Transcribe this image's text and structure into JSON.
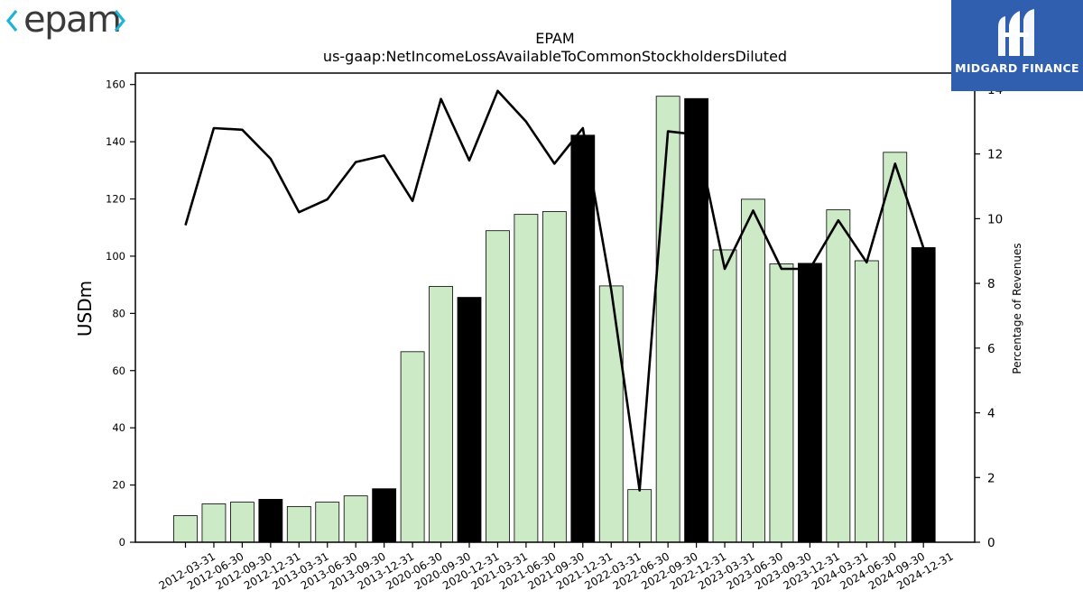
{
  "logos": {
    "left_text": "epam",
    "right_text": "MIDGARD FINANCE"
  },
  "colors": {
    "bar_light": "#cdeac6",
    "bar_dark": "#000000",
    "line": "#000000",
    "brand_blue": "#2f5fae",
    "epam_cyan": "#1fb3d5"
  },
  "chart_data": {
    "type": "bar",
    "title": "EPAM",
    "subtitle": "us-gaap:NetIncomeLossAvailableToCommonStockholdersDiluted",
    "ylabel": "USDm",
    "y2label": "Percentage of Revenues",
    "ylim": [
      0,
      164
    ],
    "y2lim": [
      0,
      14.5
    ],
    "yticks": [
      0,
      20,
      40,
      60,
      80,
      100,
      120,
      140,
      160
    ],
    "y2ticks": [
      0,
      2,
      4,
      6,
      8,
      10,
      12,
      14
    ],
    "grid": false,
    "categories": [
      "2012-03-31",
      "2012-06-30",
      "2012-09-30",
      "2012-12-31",
      "2013-03-31",
      "2013-06-30",
      "2013-09-30",
      "2013-12-31",
      "2020-06-30",
      "2020-09-30",
      "2020-12-31",
      "2021-03-31",
      "2021-06-30",
      "2021-09-30",
      "2021-12-31",
      "2022-03-31",
      "2022-06-30",
      "2022-09-30",
      "2022-12-31",
      "2023-03-31",
      "2023-06-30",
      "2023-09-30",
      "2023-12-31",
      "2024-03-31",
      "2024-06-30",
      "2024-09-30",
      "2024-12-31"
    ],
    "series": [
      {
        "type": "bar",
        "values": [
          9.3,
          13.4,
          14.0,
          15.0,
          12.5,
          14.0,
          16.2,
          18.7,
          66.6,
          89.4,
          85.6,
          108.9,
          114.6,
          115.6,
          142.3,
          89.6,
          18.4,
          155.9,
          155.1,
          102.2,
          119.9,
          97.3,
          97.5,
          116.2,
          98.4,
          136.3,
          103.0
        ],
        "year_end": [
          false,
          false,
          false,
          true,
          false,
          false,
          false,
          true,
          false,
          false,
          true,
          false,
          false,
          false,
          true,
          false,
          false,
          false,
          true,
          false,
          false,
          false,
          true,
          false,
          false,
          false,
          true
        ]
      },
      {
        "type": "line",
        "axis": "right",
        "values": [
          9.8,
          12.8,
          12.75,
          11.85,
          10.2,
          10.6,
          11.75,
          11.95,
          10.55,
          13.7,
          11.8,
          13.95,
          13.0,
          11.7,
          12.8,
          7.8,
          1.6,
          12.7,
          12.6,
          8.45,
          10.25,
          8.45,
          8.45,
          9.95,
          8.65,
          11.7,
          9.1
        ]
      }
    ]
  }
}
